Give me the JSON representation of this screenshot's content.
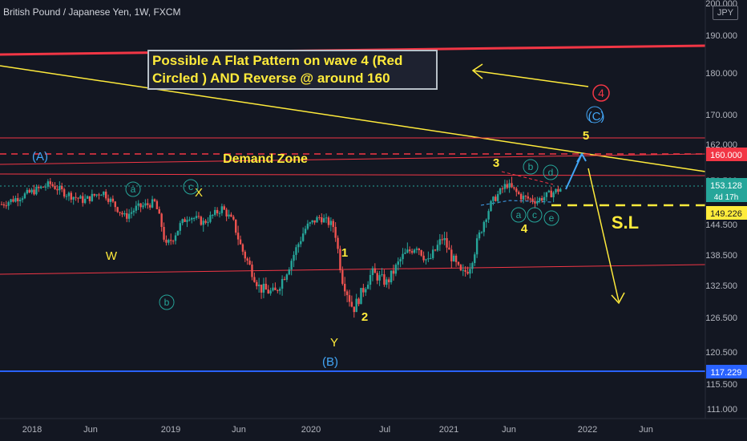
{
  "header": {
    "title": "British Pound / Japanese Yen, 1W, FXCM"
  },
  "axis": {
    "currency": "JPY"
  },
  "note_lines": [
    "Possible A Flat Pattern on wave 4 (Red",
    "Circled ) AND Reverse @ around 160"
  ],
  "labels": {
    "demand_zone": "Demand Zone",
    "sl": "S.L",
    "wave_A": "(A)",
    "wave_B": "(B)",
    "wave_C": "(C)",
    "W": "W",
    "X": "X",
    "Y": "Y",
    "n1": "1",
    "n2": "2",
    "n3": "3",
    "n4": "4",
    "n5": "5",
    "red4": "4",
    "circ_a": "a",
    "circ_b": "b",
    "circ_c": "c",
    "circ_d": "d",
    "circ_e": "e"
  },
  "price_tags": {
    "t160": "160.000",
    "t153": "153.128",
    "t153sub": "4d 17h",
    "t149": "149.226",
    "t117": "117.229"
  },
  "colors": {
    "up": "#26a69a",
    "down": "#ef5350",
    "yellow": "#ffeb3b",
    "red": "#f23645",
    "blue": "#2962ff",
    "lightblue": "#42a5f5",
    "bg": "#131722"
  },
  "chart_data": {
    "type": "candlestick",
    "title": "British Pound / Japanese Yen, 1W, FXCM",
    "y_axis": {
      "ticks": [
        200.0,
        190.0,
        180.0,
        170.0,
        162.0,
        156.5,
        144.5,
        138.5,
        132.5,
        126.5,
        120.5,
        115.5,
        111.0
      ],
      "tick_labels": [
        "200.000",
        "190.000",
        "180.000",
        "170.000",
        "162.000",
        "156.500",
        "144.500",
        "138.500",
        "132.500",
        "126.500",
        "120.500",
        "115.500",
        "111.000"
      ],
      "range": [
        109.0,
        202.0
      ]
    },
    "x_axis": {
      "tick_labels": [
        "2018",
        "Jun",
        "2019",
        "Jun",
        "2020",
        "Jul",
        "2021",
        "Jun",
        "2022",
        "Jun"
      ]
    },
    "path": [
      [
        0.0,
        150.0
      ],
      [
        3.0,
        152.5
      ],
      [
        6.5,
        155.5
      ],
      [
        8.5,
        153.0
      ],
      [
        11.0,
        151.0
      ],
      [
        13.5,
        153.5
      ],
      [
        16.5,
        146.5
      ],
      [
        18.0,
        149.0
      ],
      [
        20.5,
        150.5
      ],
      [
        22.0,
        140.0
      ],
      [
        25.0,
        147.0
      ],
      [
        27.0,
        145.0
      ],
      [
        29.5,
        149.0
      ],
      [
        31.0,
        145.0
      ],
      [
        32.0,
        140.0
      ],
      [
        34.5,
        132.0
      ],
      [
        36.5,
        131.0
      ],
      [
        38.0,
        135.0
      ],
      [
        40.5,
        143.5
      ],
      [
        42.5,
        146.5
      ],
      [
        44.5,
        144.0
      ],
      [
        45.5,
        134.0
      ],
      [
        47.0,
        128.0
      ],
      [
        49.5,
        135.0
      ],
      [
        51.5,
        133.0
      ],
      [
        53.5,
        138.0
      ],
      [
        55.5,
        140.5
      ],
      [
        57.0,
        137.0
      ],
      [
        59.0,
        142.0
      ],
      [
        60.0,
        138.5
      ],
      [
        61.5,
        134.5
      ],
      [
        62.5,
        136.0
      ],
      [
        64.0,
        143.0
      ],
      [
        65.5,
        150.5
      ],
      [
        67.5,
        155.5
      ],
      [
        69.5,
        152.0
      ],
      [
        71.5,
        151.0
      ],
      [
        73.5,
        153.0
      ],
      [
        75.0,
        154.5
      ]
    ],
    "levels": [
      {
        "price": 160.0,
        "style": "dashed",
        "color": "red"
      },
      {
        "price": 149.226,
        "style": "dashed",
        "color": "yellow"
      },
      {
        "price": 117.229,
        "style": "solid",
        "color": "blue"
      }
    ]
  }
}
